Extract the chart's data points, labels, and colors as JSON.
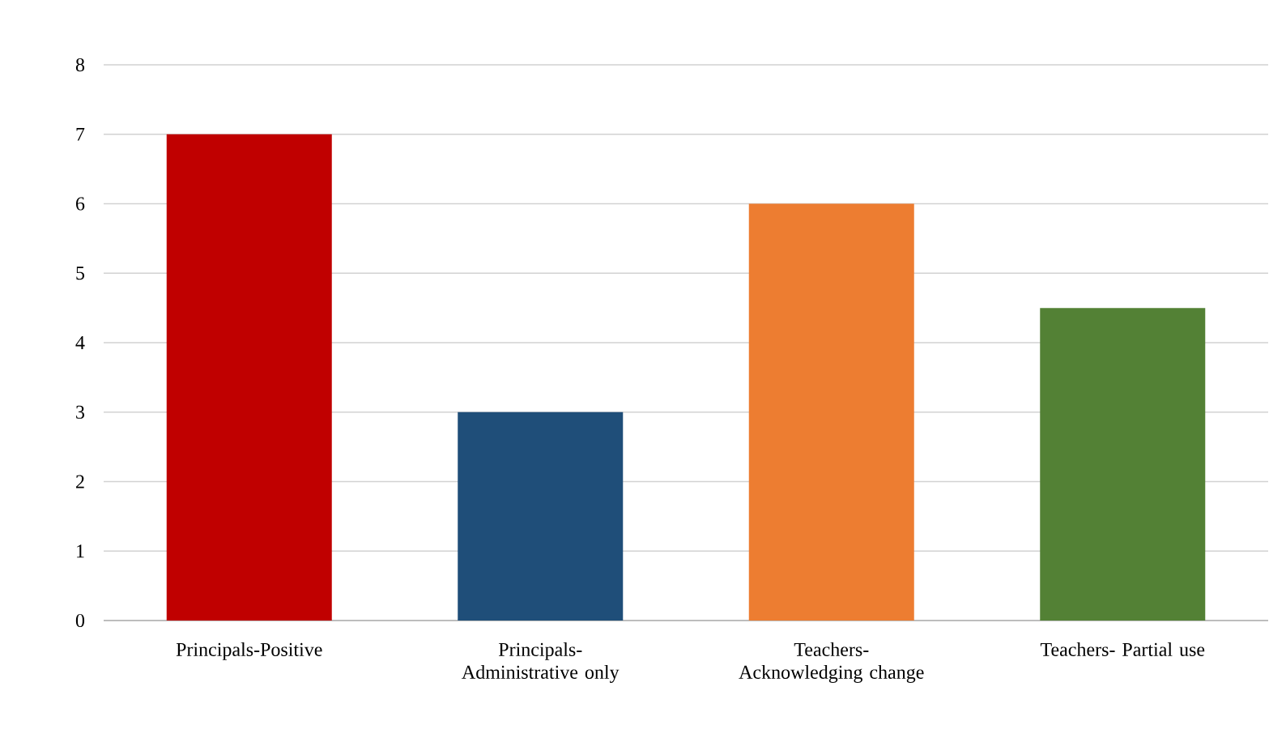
{
  "chart_data": {
    "type": "bar",
    "categories": [
      "Principals-Positive",
      "Principals- Administrative only",
      "Teachers- Acknowledging change",
      "Teachers- Partial use"
    ],
    "values": [
      7,
      3,
      6,
      4.5
    ],
    "colors": [
      "#c00000",
      "#1f4e79",
      "#ed7d31",
      "#538135"
    ],
    "ylim": [
      0,
      8
    ],
    "yticks": [
      0,
      1,
      2,
      3,
      4,
      5,
      6,
      7,
      8
    ],
    "grid": "y"
  }
}
